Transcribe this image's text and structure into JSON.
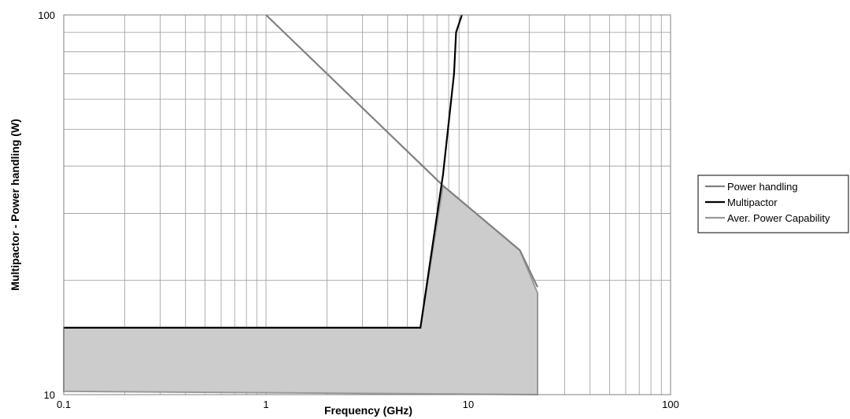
{
  "chart_data": {
    "type": "line",
    "xscale": "log",
    "yscale": "log",
    "xlim": [
      0.1,
      100
    ],
    "ylim": [
      10,
      100
    ],
    "xlabel": "Frequency  (GHz)",
    "ylabel": "Multipactor - Power handling (W)",
    "x_ticks": [
      0.1,
      1,
      10,
      100
    ],
    "x_tick_labels": [
      "0.1",
      "1",
      "10",
      "100"
    ],
    "y_ticks": [
      10,
      100
    ],
    "y_tick_labels": [
      "10",
      "100"
    ],
    "grid": true,
    "legend_position": "right",
    "series": [
      {
        "name": "Power handling",
        "color": "#808080",
        "points": [
          [
            1.0,
            100
          ],
          [
            7.5,
            35.5
          ],
          [
            18,
            24
          ],
          [
            22,
            19.2
          ]
        ]
      },
      {
        "name": "Multipactor",
        "color": "#000000",
        "points": [
          [
            0.1,
            15
          ],
          [
            5.8,
            15
          ],
          [
            7.5,
            38
          ],
          [
            8.5,
            70
          ],
          [
            8.7,
            90
          ],
          [
            9.3,
            100
          ]
        ]
      },
      {
        "name": "Aver. Power Capability",
        "color": "#999999",
        "fill": "#cccccc",
        "points": [
          [
            0.1,
            15
          ],
          [
            5.8,
            15
          ],
          [
            7.5,
            35.5
          ],
          [
            18,
            24
          ],
          [
            22,
            18.5
          ],
          [
            22,
            10
          ],
          [
            0.1,
            10.2
          ]
        ]
      }
    ]
  }
}
